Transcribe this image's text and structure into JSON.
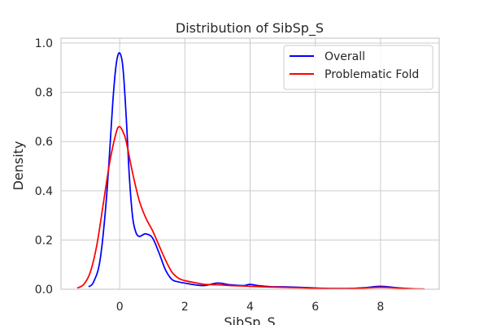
{
  "chart_data": {
    "type": "line",
    "title": "Distribution of SibSp_S",
    "xlabel": "SibSp_S",
    "ylabel": "Density",
    "xlim": [
      -1.8,
      9.8
    ],
    "ylim": [
      0,
      1.02
    ],
    "xticks": [
      0,
      2,
      4,
      6,
      8
    ],
    "yticks": [
      0.0,
      0.2,
      0.4,
      0.6,
      0.8,
      1.0
    ],
    "grid": true,
    "legend_position": "top-right",
    "series": [
      {
        "name": "Overall",
        "color": "#0000ff",
        "x": [
          -0.95,
          -0.8,
          -0.6,
          -0.4,
          -0.2,
          -0.1,
          0.0,
          0.1,
          0.2,
          0.3,
          0.4,
          0.5,
          0.6,
          0.7,
          0.8,
          1.0,
          1.2,
          1.4,
          1.6,
          1.8,
          2.0,
          2.3,
          2.6,
          3.0,
          3.4,
          3.8,
          4.0,
          4.3,
          4.7,
          5.0,
          5.5,
          6.0,
          6.5,
          7.0,
          7.5,
          8.0,
          8.5,
          8.95
        ],
        "y": [
          0.01,
          0.03,
          0.12,
          0.38,
          0.78,
          0.92,
          0.96,
          0.9,
          0.7,
          0.45,
          0.29,
          0.23,
          0.215,
          0.22,
          0.225,
          0.21,
          0.15,
          0.08,
          0.04,
          0.03,
          0.025,
          0.018,
          0.015,
          0.025,
          0.018,
          0.015,
          0.02,
          0.014,
          0.01,
          0.01,
          0.008,
          0.005,
          0.003,
          0.003,
          0.006,
          0.012,
          0.006,
          0.002
        ]
      },
      {
        "name": "Problematic Fold",
        "color": "#ff0000",
        "x": [
          -1.3,
          -1.1,
          -0.9,
          -0.7,
          -0.5,
          -0.3,
          -0.1,
          0.0,
          0.1,
          0.2,
          0.4,
          0.6,
          0.8,
          1.0,
          1.2,
          1.4,
          1.6,
          1.8,
          2.0,
          2.3,
          2.6,
          3.0,
          3.4,
          3.8,
          4.2,
          4.6,
          5.0,
          5.5,
          6.0,
          6.5,
          7.0,
          7.5,
          8.0,
          8.5,
          9.0,
          9.35
        ],
        "y": [
          0.005,
          0.02,
          0.07,
          0.18,
          0.35,
          0.52,
          0.64,
          0.66,
          0.64,
          0.6,
          0.47,
          0.36,
          0.29,
          0.24,
          0.18,
          0.12,
          0.07,
          0.045,
          0.035,
          0.027,
          0.02,
          0.018,
          0.015,
          0.013,
          0.011,
          0.009,
          0.008,
          0.006,
          0.004,
          0.003,
          0.003,
          0.005,
          0.008,
          0.005,
          0.002,
          0.001
        ]
      }
    ]
  }
}
